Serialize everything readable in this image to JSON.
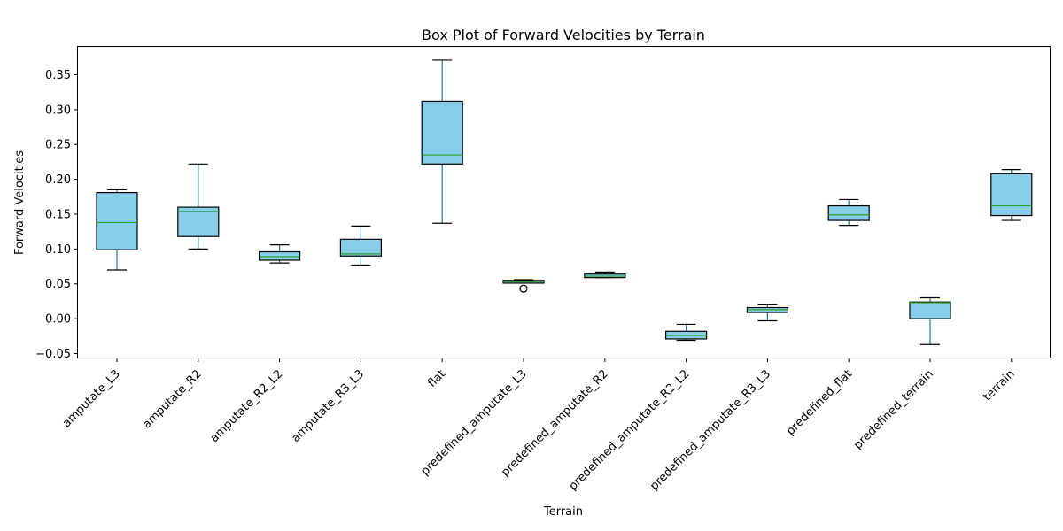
{
  "chart_data": {
    "type": "box",
    "title": "Box Plot of Forward Velocities by Terrain",
    "xlabel": "Terrain",
    "ylabel": "Forward Velocities",
    "ylim": [
      -0.057,
      0.39
    ],
    "yticks": [
      -0.05,
      0.0,
      0.05,
      0.1,
      0.15,
      0.2,
      0.25,
      0.3,
      0.35
    ],
    "ytick_labels": [
      "−0.05",
      "0.00",
      "0.05",
      "0.10",
      "0.15",
      "0.20",
      "0.25",
      "0.30",
      "0.35"
    ],
    "grid": false,
    "colors": {
      "box_fill": "#87ceeb",
      "box_edge": "#000000",
      "whisker": "#1f77b4",
      "median": "#2ca02c",
      "cap": "#000000",
      "flier": "#000000"
    },
    "boxes": [
      {
        "category": "amputate_L3",
        "whislo": 0.07,
        "q1": 0.099,
        "med": 0.138,
        "q3": 0.181,
        "whishi": 0.185,
        "fliers": []
      },
      {
        "category": "amputate_R2",
        "whislo": 0.1,
        "q1": 0.118,
        "med": 0.154,
        "q3": 0.16,
        "whishi": 0.222,
        "fliers": []
      },
      {
        "category": "amputate_R2_L2",
        "whislo": 0.08,
        "q1": 0.084,
        "med": 0.089,
        "q3": 0.096,
        "whishi": 0.106,
        "fliers": []
      },
      {
        "category": "amputate_R3_L3",
        "whislo": 0.077,
        "q1": 0.09,
        "med": 0.093,
        "q3": 0.114,
        "whishi": 0.133,
        "fliers": []
      },
      {
        "category": "flat",
        "whislo": 0.137,
        "q1": 0.222,
        "med": 0.235,
        "q3": 0.312,
        "whishi": 0.371,
        "fliers": []
      },
      {
        "category": "predefined_amputate_L3",
        "whislo": 0.051,
        "q1": 0.051,
        "med": 0.053,
        "q3": 0.055,
        "whishi": 0.056,
        "fliers": [
          0.043
        ]
      },
      {
        "category": "predefined_amputate_R2",
        "whislo": 0.059,
        "q1": 0.059,
        "med": 0.061,
        "q3": 0.064,
        "whishi": 0.067,
        "fliers": []
      },
      {
        "category": "predefined_amputate_R2_L2",
        "whislo": -0.031,
        "q1": -0.029,
        "med": -0.024,
        "q3": -0.018,
        "whishi": -0.008,
        "fliers": []
      },
      {
        "category": "predefined_amputate_R3_L3",
        "whislo": -0.003,
        "q1": 0.009,
        "med": 0.013,
        "q3": 0.016,
        "whishi": 0.02,
        "fliers": []
      },
      {
        "category": "predefined_flat",
        "whislo": 0.134,
        "q1": 0.141,
        "med": 0.149,
        "q3": 0.162,
        "whishi": 0.171,
        "fliers": []
      },
      {
        "category": "predefined_terrain",
        "whislo": -0.037,
        "q1": 0.0,
        "med": 0.023,
        "q3": 0.024,
        "whishi": 0.03,
        "fliers": []
      },
      {
        "category": "terrain",
        "whislo": 0.141,
        "q1": 0.148,
        "med": 0.162,
        "q3": 0.208,
        "whishi": 0.214,
        "fliers": []
      }
    ]
  }
}
